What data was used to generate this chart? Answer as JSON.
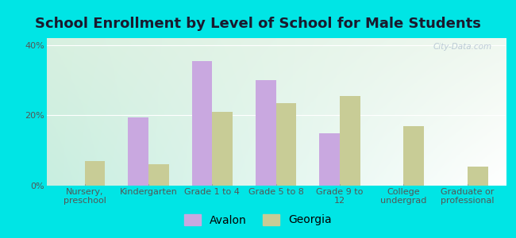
{
  "title": "School Enrollment by Level of School for Male Students",
  "categories": [
    "Nursery,\npreschool",
    "Kindergarten",
    "Grade 1 to 4",
    "Grade 5 to 8",
    "Grade 9 to\n12",
    "College\nundergrad",
    "Graduate or\nprofessional"
  ],
  "avalon": [
    0,
    19.5,
    35.5,
    30.0,
    15.0,
    0,
    0
  ],
  "georgia": [
    7.0,
    6.0,
    21.0,
    23.5,
    25.5,
    17.0,
    5.5
  ],
  "avalon_color": "#c9a8e0",
  "georgia_color": "#c8cc96",
  "background_color": "#00e5e5",
  "plot_bg_color_topleft": "#d8f0e0",
  "plot_bg_color_topright": "#f0f8f0",
  "plot_bg_color_bottomleft": "#c8eee0",
  "plot_bg_color_bottomright": "#ffffff",
  "ylim": [
    0,
    42
  ],
  "yticks": [
    0,
    20,
    40
  ],
  "ytick_labels": [
    "0%",
    "20%",
    "40%"
  ],
  "bar_width": 0.32,
  "title_fontsize": 13,
  "tick_fontsize": 8,
  "legend_fontsize": 10,
  "watermark": "City-Data.com"
}
